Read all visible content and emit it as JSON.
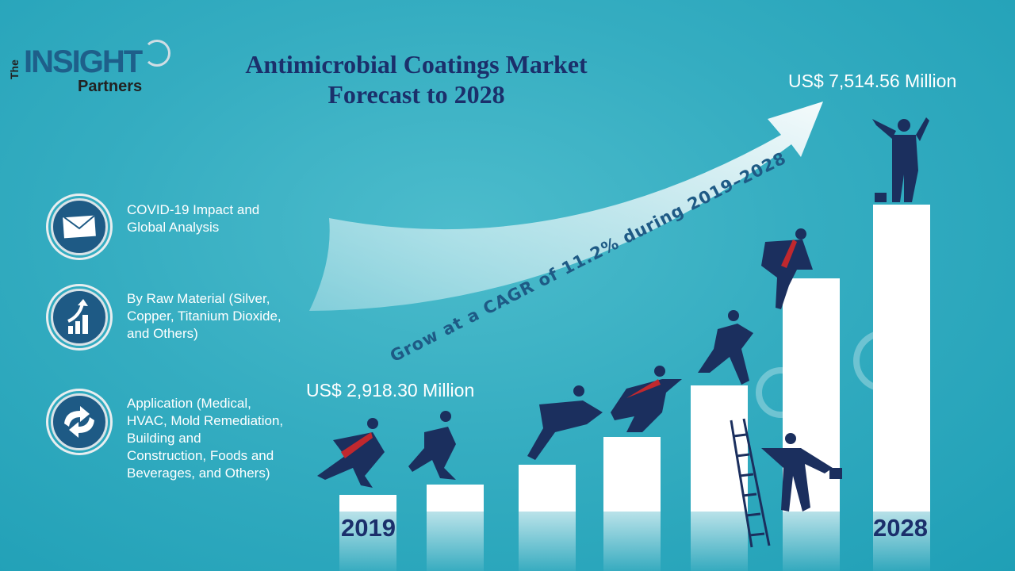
{
  "logo": {
    "the": "The",
    "insight": "INSIGHT",
    "partners": "Partners"
  },
  "title": {
    "line1": "Antimicrobial Coatings Market",
    "line2": "Forecast to 2028"
  },
  "items": [
    {
      "icon": "envelope-icon",
      "text": "COVID-19 Impact and\nGlobal Analysis"
    },
    {
      "icon": "growth-chart-icon",
      "text": "By Raw Material (Silver,\nCopper, Titanium Dioxide,\n and Others)"
    },
    {
      "icon": "recycle-arrows-icon",
      "text": "Application (Medical,\nHVAC, Mold Remediation,\n Building and\nConstruction,  Foods and\nBeverages,  and Others)"
    }
  ],
  "start_value": "US$ 2,918.30 Million",
  "end_value": "US$ 7,514.56 Million",
  "cagr_text": "Grow at a CAGR of 11.2% during 2019–2028",
  "start_year": "2019",
  "end_year": "2028",
  "colors": {
    "title": "#1b2f6b",
    "icon_bg": "#1e5a85",
    "background": "#35adc1"
  }
}
